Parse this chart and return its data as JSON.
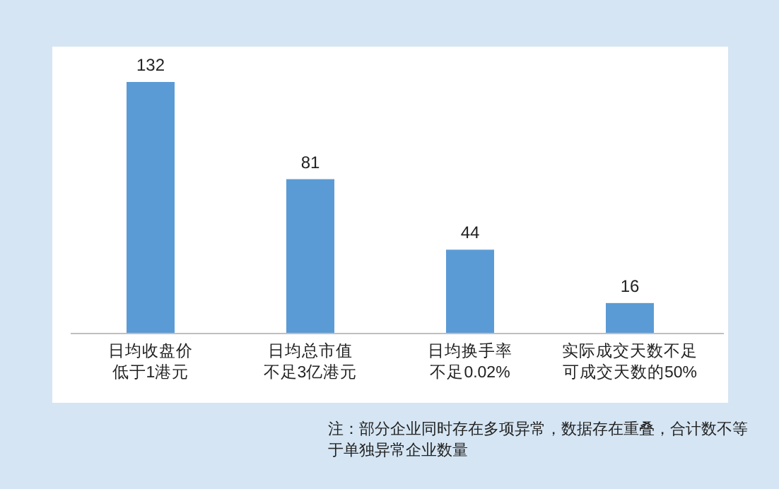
{
  "chart_data": {
    "type": "bar",
    "categories": [
      "日均收盘价低于1港元",
      "日均总市值不足3亿港元",
      "日均换手率不足0.02%",
      "实际成交天数不足可成交天数的50%"
    ],
    "values": [
      132,
      81,
      44,
      16
    ],
    "color": "#5b9bd5",
    "data_labels": true,
    "annotations": [
      "注：部分企业同时存在多项异常，数据存在重叠，合计数不等于单独异常企业数量"
    ]
  }
}
